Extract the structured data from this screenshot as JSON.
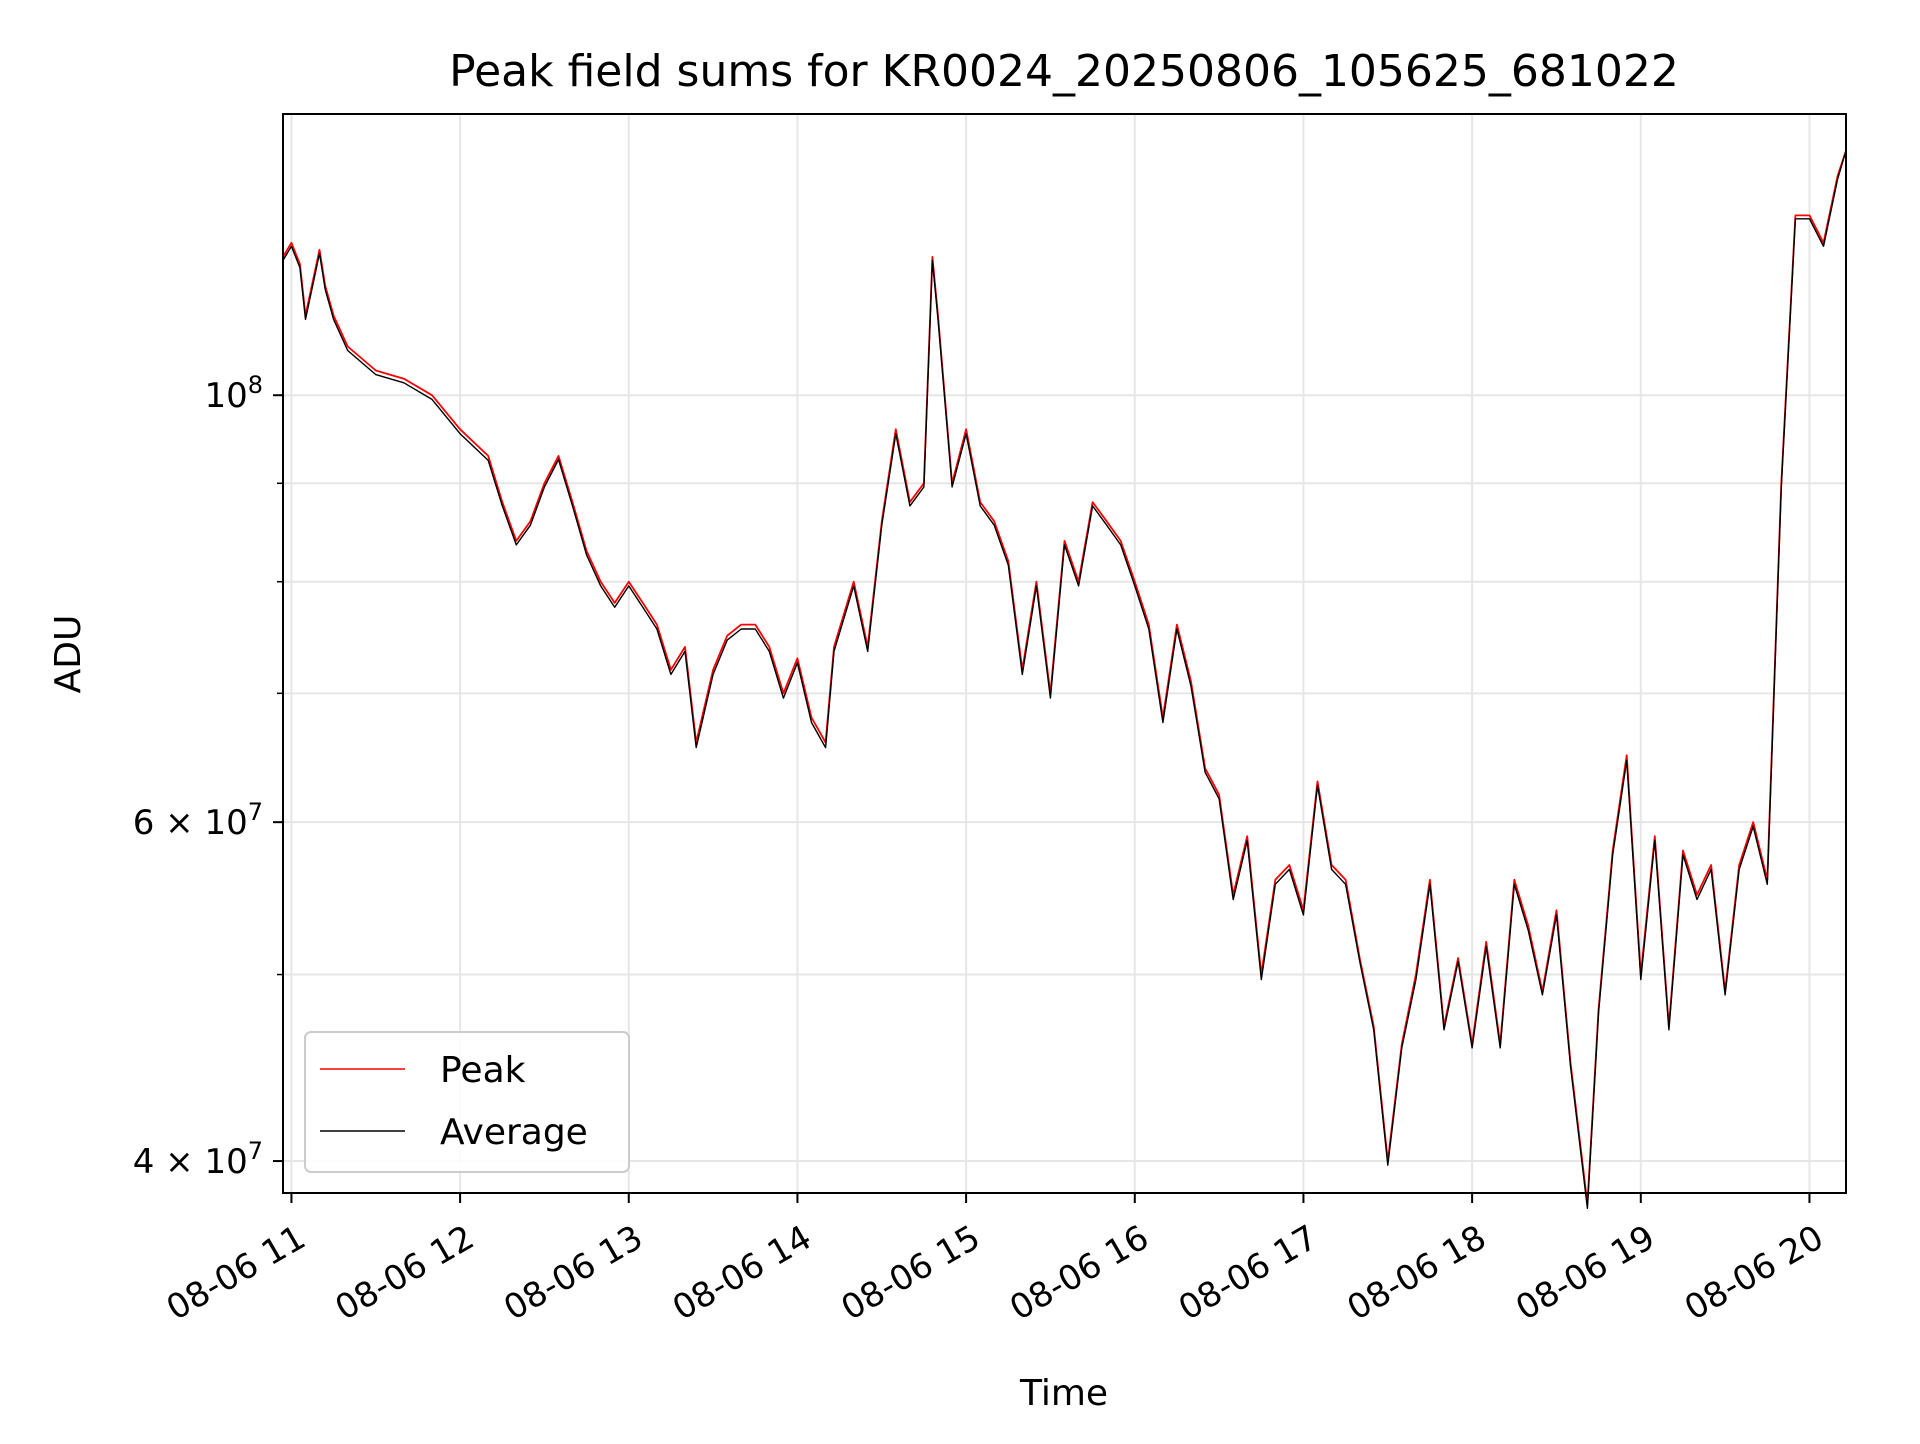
{
  "chart_data": {
    "type": "line",
    "title": "Peak field sums for KR0024_20250806_105625_681022",
    "xlabel": "Time",
    "ylabel": "ADU",
    "yscale": "log",
    "ylim": [
      38500000,
      140000000
    ],
    "xlim": [
      "08-06 10:57",
      "08-06 20:13"
    ],
    "grid": true,
    "legend_position": "lower-left",
    "x_ticks": [
      "08-06 11",
      "08-06 12",
      "08-06 13",
      "08-06 14",
      "08-06 15",
      "08-06 16",
      "08-06 17",
      "08-06 18",
      "08-06 19",
      "08-06 20"
    ],
    "y_ticks": [
      {
        "value": 100000000,
        "base": "10",
        "exp": "8"
      },
      {
        "value": 60000000,
        "base": "6 × 10",
        "exp": "7"
      },
      {
        "value": 40000000,
        "base": "4 × 10",
        "exp": "7"
      }
    ],
    "y_minor_ticks": [
      50000000,
      70000000,
      80000000,
      90000000
    ],
    "x": [
      "08-06 10:57",
      "08-06 11:00",
      "08-06 11:03",
      "08-06 11:05",
      "08-06 11:10",
      "08-06 11:12",
      "08-06 11:15",
      "08-06 11:20",
      "08-06 11:30",
      "08-06 11:40",
      "08-06 11:50",
      "08-06 12:00",
      "08-06 12:10",
      "08-06 12:15",
      "08-06 12:20",
      "08-06 12:25",
      "08-06 12:30",
      "08-06 12:35",
      "08-06 12:40",
      "08-06 12:45",
      "08-06 12:50",
      "08-06 12:55",
      "08-06 13:00",
      "08-06 13:05",
      "08-06 13:10",
      "08-06 13:15",
      "08-06 13:20",
      "08-06 13:24",
      "08-06 13:30",
      "08-06 13:35",
      "08-06 13:40",
      "08-06 13:45",
      "08-06 13:50",
      "08-06 13:55",
      "08-06 14:00",
      "08-06 14:05",
      "08-06 14:10",
      "08-06 14:13",
      "08-06 14:20",
      "08-06 14:25",
      "08-06 14:30",
      "08-06 14:35",
      "08-06 14:40",
      "08-06 14:45",
      "08-06 14:48",
      "08-06 14:50",
      "08-06 14:55",
      "08-06 15:00",
      "08-06 15:05",
      "08-06 15:10",
      "08-06 15:15",
      "08-06 15:20",
      "08-06 15:25",
      "08-06 15:30",
      "08-06 15:35",
      "08-06 15:40",
      "08-06 15:45",
      "08-06 15:50",
      "08-06 15:55",
      "08-06 16:00",
      "08-06 16:05",
      "08-06 16:10",
      "08-06 16:15",
      "08-06 16:20",
      "08-06 16:25",
      "08-06 16:30",
      "08-06 16:35",
      "08-06 16:40",
      "08-06 16:45",
      "08-06 16:50",
      "08-06 16:55",
      "08-06 17:00",
      "08-06 17:05",
      "08-06 17:10",
      "08-06 17:15",
      "08-06 17:20",
      "08-06 17:25",
      "08-06 17:30",
      "08-06 17:35",
      "08-06 17:40",
      "08-06 17:45",
      "08-06 17:50",
      "08-06 17:55",
      "08-06 18:00",
      "08-06 18:05",
      "08-06 18:10",
      "08-06 18:15",
      "08-06 18:20",
      "08-06 18:25",
      "08-06 18:30",
      "08-06 18:35",
      "08-06 18:41",
      "08-06 18:45",
      "08-06 18:50",
      "08-06 18:55",
      "08-06 19:00",
      "08-06 19:05",
      "08-06 19:10",
      "08-06 19:15",
      "08-06 19:20",
      "08-06 19:25",
      "08-06 19:30",
      "08-06 19:35",
      "08-06 19:40",
      "08-06 19:45",
      "08-06 19:50",
      "08-06 19:55",
      "08-06 20:00",
      "08-06 20:05",
      "08-06 20:10",
      "08-06 20:13"
    ],
    "series": [
      {
        "name": "Peak",
        "color": "#ff0000",
        "values": [
          118,
          120,
          117,
          110,
          119,
          114,
          110,
          106,
          103,
          102,
          100,
          96,
          93,
          88,
          84,
          86,
          90,
          93,
          88,
          83,
          80,
          78,
          80,
          78,
          76,
          72,
          74,
          66,
          72,
          75,
          76,
          76,
          74,
          70,
          73,
          68,
          66,
          74,
          80,
          74,
          86,
          96,
          88,
          90,
          118,
          110,
          90,
          96,
          88,
          86,
          82,
          72,
          80,
          70,
          84,
          80,
          88,
          86,
          84,
          80,
          76,
          68,
          76,
          71,
          64,
          62,
          55,
          59,
          50,
          56,
          57,
          54,
          63,
          57,
          56,
          51,
          47,
          40,
          46,
          50,
          56,
          47,
          51,
          46,
          52,
          46,
          56,
          53,
          49,
          54,
          45,
          38,
          48,
          58,
          65,
          50,
          59,
          47,
          58,
          55,
          57,
          49,
          57,
          60,
          56,
          90,
          124,
          124,
          120,
          130,
          134
        ]
      },
      {
        "name": "Average",
        "color": "#000000",
        "values": [
          117.5,
          119.5,
          116.5,
          109.5,
          118.5,
          113.5,
          109.5,
          105.5,
          102.5,
          101.5,
          99.5,
          95.5,
          92.5,
          87.6,
          83.6,
          85.6,
          89.6,
          92.6,
          87.6,
          82.6,
          79.6,
          77.6,
          79.6,
          77.6,
          75.6,
          71.6,
          73.6,
          65.6,
          71.6,
          74.6,
          75.6,
          75.6,
          73.6,
          69.6,
          72.6,
          67.6,
          65.6,
          73.6,
          79.6,
          73.6,
          85.6,
          95.5,
          87.6,
          89.6,
          117.5,
          109.5,
          89.6,
          95.5,
          87.6,
          85.6,
          81.6,
          71.6,
          79.6,
          69.6,
          83.6,
          79.6,
          87.6,
          85.6,
          83.6,
          79.6,
          75.6,
          67.6,
          75.6,
          70.6,
          63.7,
          61.7,
          54.7,
          58.7,
          49.7,
          55.7,
          56.7,
          53.7,
          62.7,
          56.7,
          55.7,
          50.8,
          46.8,
          39.8,
          45.8,
          49.7,
          55.7,
          46.8,
          50.8,
          45.8,
          51.7,
          45.8,
          55.7,
          52.7,
          48.8,
          53.7,
          44.8,
          37.8,
          47.8,
          57.7,
          64.6,
          49.7,
          58.7,
          46.8,
          57.7,
          54.7,
          56.7,
          48.8,
          56.7,
          59.7,
          55.7,
          89.6,
          123.5,
          123.5,
          119.5,
          129.5,
          134
        ]
      }
    ],
    "values_unit": "millions of ADU",
    "legend": [
      {
        "label": "Peak",
        "color": "#ff0000"
      },
      {
        "label": "Average",
        "color": "#000000"
      }
    ]
  }
}
